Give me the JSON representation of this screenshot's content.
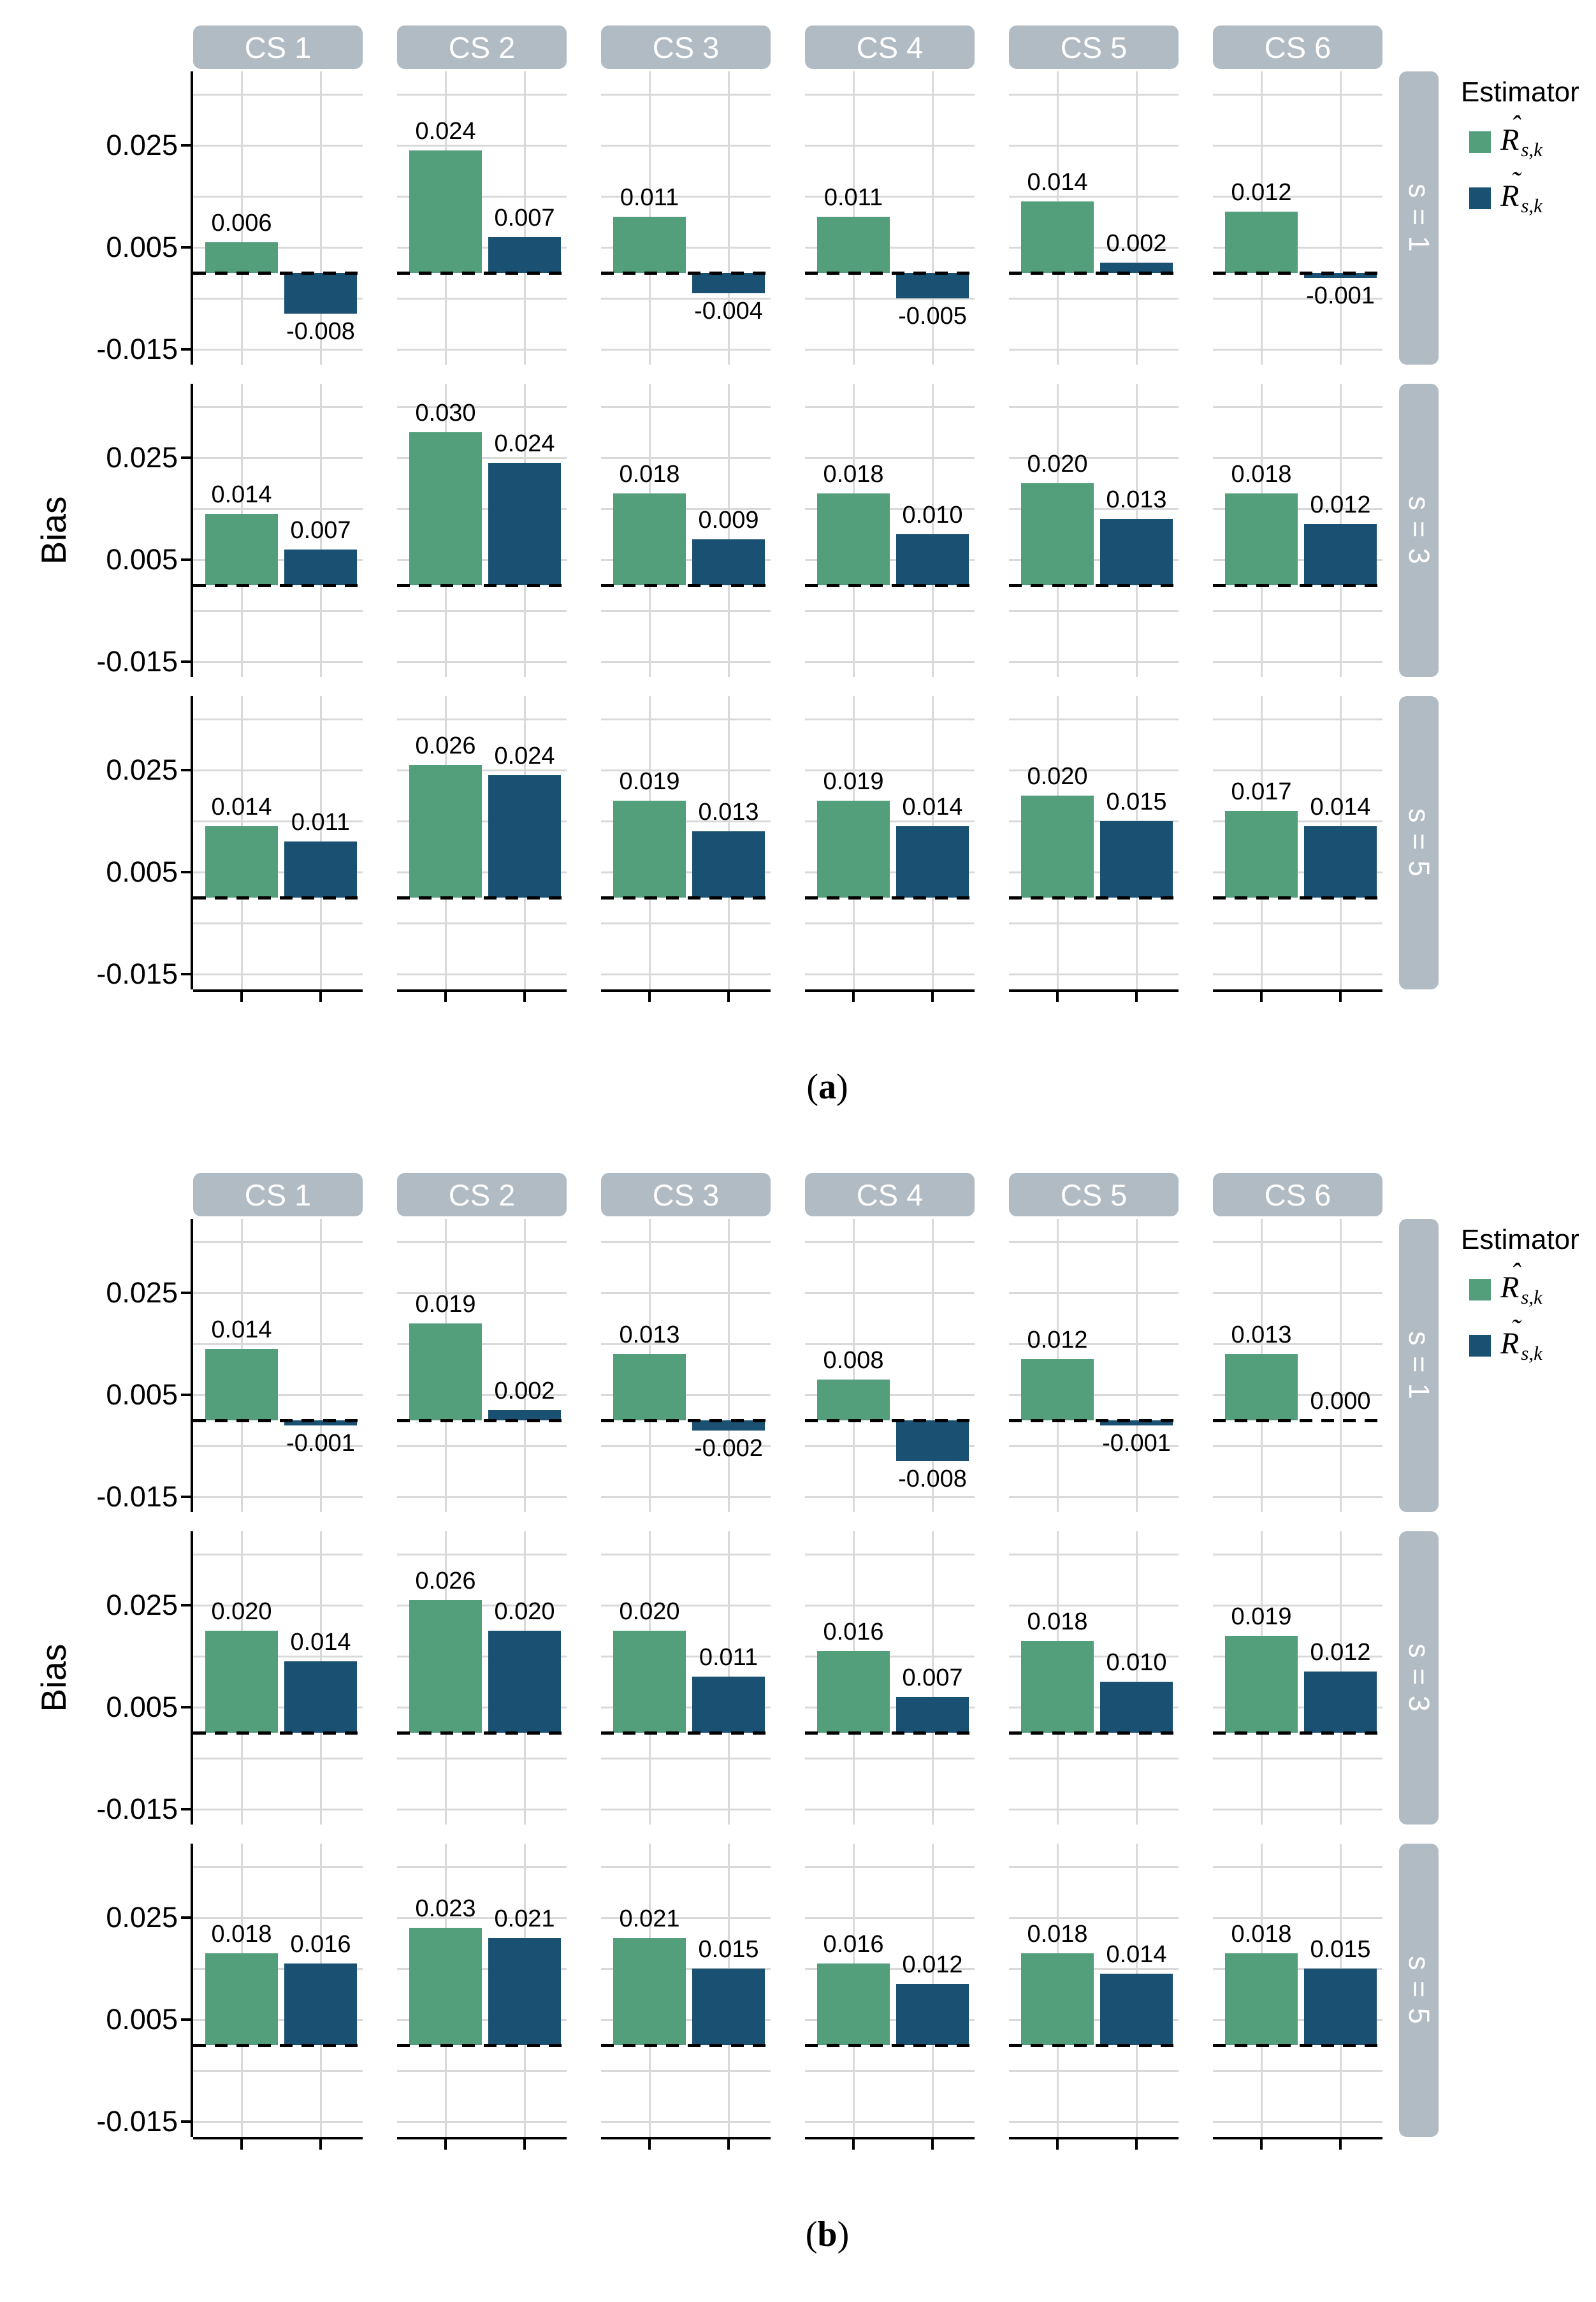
{
  "figure_type": "faceted-bar-figure",
  "colors": {
    "green": "#539f7b",
    "blue": "#1a5172",
    "strip": "#b1bbc4",
    "strip_text": "#ffffff",
    "grid": "#d9d9d9",
    "zero_line": "#000000",
    "axis": "#000000",
    "text": "#000000",
    "background": "#ffffff"
  },
  "chart_data": [
    {
      "id": "a",
      "type": "bar",
      "caption": {
        "prefix": "(",
        "char": "a",
        "suffix": ")"
      },
      "facet_cols": [
        "CS 1",
        "CS 2",
        "CS 3",
        "CS 4",
        "CS 5",
        "CS 6"
      ],
      "facet_rows": [
        "s = 1",
        "s = 3",
        "s = 5"
      ],
      "ylabel": "Bias",
      "ytick_labels": [
        "0.025",
        "0.005",
        "-0.015"
      ],
      "ytick_values": [
        0.025,
        0.005,
        -0.015
      ],
      "grid_major": [
        0.025,
        0.005,
        -0.015
      ],
      "grid_minor": [
        0.035,
        0.015,
        -0.005
      ],
      "ylim": [
        -0.018,
        0.0395
      ],
      "zero_line": 0,
      "legend": {
        "title": "Estimator",
        "position": "right",
        "items": [
          {
            "name": "r-hat",
            "base": "R",
            "accent": "ˆ",
            "subscript": "s,k",
            "color": "#539f7b"
          },
          {
            "name": "r-tilde",
            "base": "R",
            "accent": "˜",
            "subscript": "s,k",
            "color": "#1a5172"
          }
        ]
      },
      "series": [
        {
          "name": "R_hat_s_k",
          "color": "#539f7b",
          "rows": [
            [
              0.006,
              0.024,
              0.011,
              0.011,
              0.014,
              0.012
            ],
            [
              0.014,
              0.03,
              0.018,
              0.018,
              0.02,
              0.018
            ],
            [
              0.014,
              0.026,
              0.019,
              0.019,
              0.02,
              0.017
            ]
          ]
        },
        {
          "name": "R_tilde_s_k",
          "color": "#1a5172",
          "rows": [
            [
              -0.008,
              0.007,
              -0.004,
              -0.005,
              0.002,
              -0.001
            ],
            [
              0.007,
              0.024,
              0.009,
              0.01,
              0.013,
              0.012
            ],
            [
              0.011,
              0.024,
              0.013,
              0.014,
              0.015,
              0.014
            ]
          ]
        }
      ]
    },
    {
      "id": "b",
      "type": "bar",
      "caption": {
        "prefix": "(",
        "char": "b",
        "suffix": ")"
      },
      "facet_cols": [
        "CS 1",
        "CS 2",
        "CS 3",
        "CS 4",
        "CS 5",
        "CS 6"
      ],
      "facet_rows": [
        "s = 1",
        "s = 3",
        "s = 5"
      ],
      "ylabel": "Bias",
      "ytick_labels": [
        "0.025",
        "0.005",
        "-0.015"
      ],
      "ytick_values": [
        0.025,
        0.005,
        -0.015
      ],
      "grid_major": [
        0.025,
        0.005,
        -0.015
      ],
      "grid_minor": [
        0.035,
        0.015,
        -0.005
      ],
      "ylim": [
        -0.018,
        0.0395
      ],
      "zero_line": 0,
      "legend": {
        "title": "Estimator",
        "position": "right",
        "items": [
          {
            "name": "r-hat",
            "base": "R",
            "accent": "ˆ",
            "subscript": "s,k",
            "color": "#539f7b"
          },
          {
            "name": "r-tilde",
            "base": "R",
            "accent": "˜",
            "subscript": "s,k",
            "color": "#1a5172"
          }
        ]
      },
      "series": [
        {
          "name": "R_hat_s_k",
          "color": "#539f7b",
          "rows": [
            [
              0.014,
              0.019,
              0.013,
              0.008,
              0.012,
              0.013
            ],
            [
              0.02,
              0.026,
              0.02,
              0.016,
              0.018,
              0.019
            ],
            [
              0.018,
              0.023,
              0.021,
              0.016,
              0.018,
              0.018
            ]
          ]
        },
        {
          "name": "R_tilde_s_k",
          "color": "#1a5172",
          "rows": [
            [
              -0.001,
              0.002,
              -0.002,
              -0.008,
              -0.001,
              0.0
            ],
            [
              0.014,
              0.02,
              0.011,
              0.007,
              0.01,
              0.012
            ],
            [
              0.016,
              0.021,
              0.015,
              0.012,
              0.014,
              0.015
            ]
          ]
        }
      ]
    }
  ]
}
